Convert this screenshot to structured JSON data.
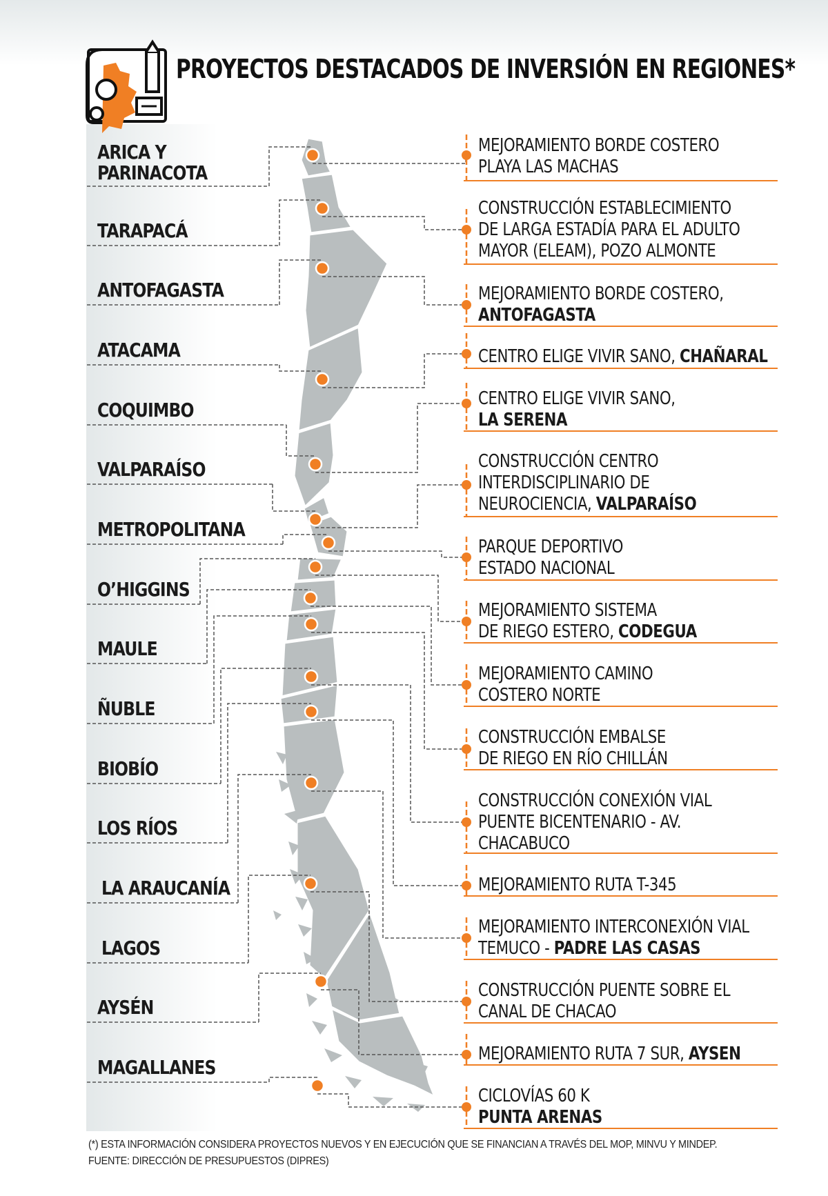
{
  "title": "PROYECTOS DESTACADOS DE INVERSIÓN EN REGIONES*",
  "colors": {
    "accent": "#f07f24",
    "map": "#b9bebf",
    "line": "#555555"
  },
  "icon": "blueprint-gear-pencil-icon",
  "regions": [
    {
      "line1": "ARICA Y",
      "line2": "PARINACOTA"
    },
    {
      "line1": "TARAPACÁ"
    },
    {
      "line1": "ANTOFAGASTA"
    },
    {
      "line1": "ATACAMA"
    },
    {
      "line1": "COQUIMBO"
    },
    {
      "line1": "VALPARAÍSO"
    },
    {
      "line1": "METROPOLITANA"
    },
    {
      "line1": "O’HIGGINS"
    },
    {
      "line1": "MAULE"
    },
    {
      "line1": "ÑUBLE"
    },
    {
      "line1": "BIOBÍO"
    },
    {
      "line1": "LOS RÍOS"
    },
    {
      "line1": "LA ARAUCANÍA"
    },
    {
      "line1": "LAGOS"
    },
    {
      "line1": "AYSÉN"
    },
    {
      "line1": "MAGALLANES"
    }
  ],
  "projects": [
    {
      "l1": "MEJORAMIENTO BORDE COSTERO",
      "l2": "PLAYA LAS MACHAS",
      "l2b": ""
    },
    {
      "l1": "CONSTRUCCIÓN ESTABLECIMIENTO",
      "l2": "DE LARGA ESTADÍA PARA EL ADULTO",
      "l3": "MAYOR (ELEAM), POZO ALMONTE",
      "l3b": ""
    },
    {
      "l1": "MEJORAMIENTO BORDE COSTERO,",
      "l2": "",
      "l2b": "ANTOFAGASTA"
    },
    {
      "l1": "CENTRO ELIGE VIVIR SANO, ",
      "l1b": "CHAÑARAL"
    },
    {
      "l1": "CENTRO ELIGE VIVIR SANO,",
      "l2": "",
      "l2b": "LA SERENA"
    },
    {
      "l1": "CONSTRUCCIÓN CENTRO",
      "l2": "INTERDISCIPLINARIO DE",
      "l3": "NEUROCIENCIA, ",
      "l3b": "VALPARAÍSO"
    },
    {
      "l1": "PARQUE DEPORTIVO",
      "l2": "ESTADO NACIONAL",
      "l2b": ""
    },
    {
      "l1": "MEJORAMIENTO SISTEMA",
      "l2": "DE RIEGO ESTERO, ",
      "l2b": "CODEGUA"
    },
    {
      "l1": "MEJORAMIENTO CAMINO",
      "l2": "COSTERO NORTE",
      "l2b": ""
    },
    {
      "l1": "CONSTRUCCIÓN EMBALSE",
      "l2": "DE RIEGO EN RÍO CHILLÁN",
      "l2b": ""
    },
    {
      "l1": "CONSTRUCCIÓN CONEXIÓN VIAL",
      "l2": "PUENTE BICENTENARIO - AV.",
      "l3": "CHACABUCO",
      "l3b": ""
    },
    {
      "l1": "MEJORAMIENTO RUTA T-345",
      "l1b": ""
    },
    {
      "l1": "MEJORAMIENTO INTERCONEXIÓN VIAL",
      "l2": "TEMUCO - ",
      "l2b": "PADRE LAS CASAS"
    },
    {
      "l1": "CONSTRUCCIÓN PUENTE SOBRE EL",
      "l2": "CANAL DE CHACAO",
      "l2b": ""
    },
    {
      "l1": "MEJORAMIENTO RUTA 7 SUR, ",
      "l1b": "AYSEN"
    },
    {
      "l1": "CICLOVÍAS 60 K",
      "l2": "",
      "l2b": "PUNTA ARENAS"
    }
  ],
  "footnote": {
    "line1": "(*) ESTA INFORMACIÓN CONSIDERA PROYECTOS NUEVOS Y EN EJECUCIÓN QUE SE FINANCIAN A TRAVÉS DEL MOP, MINVU Y MINDEP.",
    "line2": "FUENTE: DIRECCIÓN DE PRESUPUESTOS (DIPRES)"
  }
}
